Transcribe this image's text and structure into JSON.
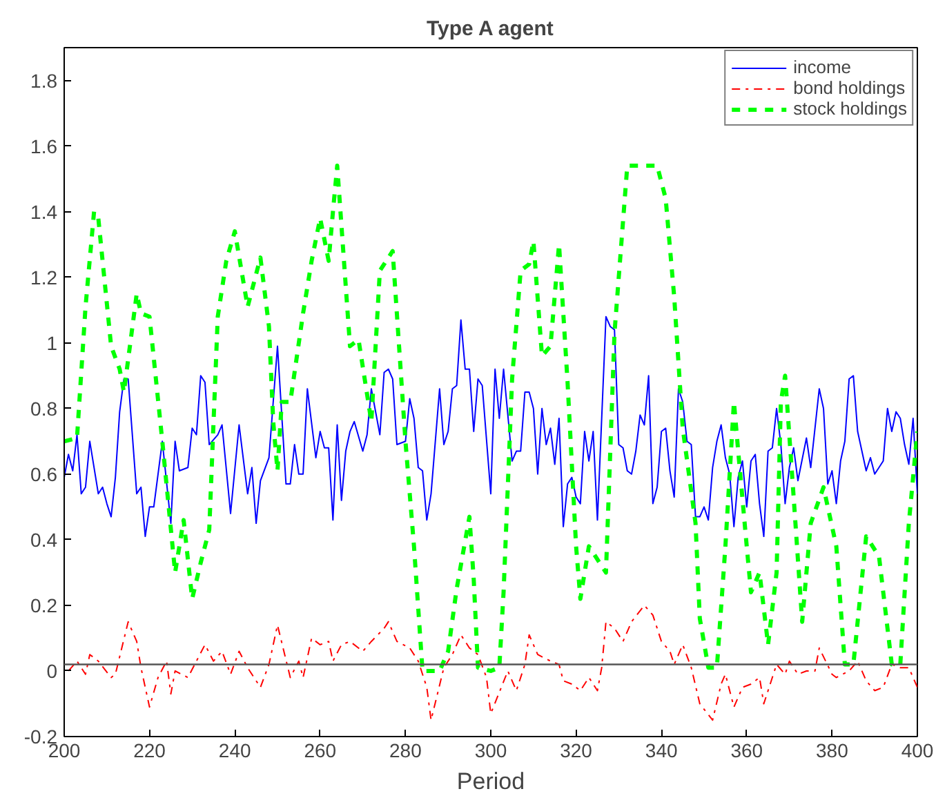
{
  "chart_data": {
    "type": "line",
    "title": "Type A agent",
    "xlabel": "Period",
    "xlim": [
      200,
      400
    ],
    "xticks": [
      200,
      220,
      240,
      260,
      280,
      300,
      320,
      340,
      360,
      380,
      400
    ],
    "ylim": [
      -0.2,
      1.9
    ],
    "yticks": [
      -0.2,
      0,
      0.2,
      0.4,
      0.6,
      0.8,
      1,
      1.2,
      1.4,
      1.6,
      1.8
    ],
    "grid": false,
    "legend": "top right",
    "marker": "none",
    "ref_lines": [
      {
        "axis": "y",
        "value": 0.02,
        "color": "#555555"
      }
    ],
    "series": [
      {
        "name": "income",
        "color": "#0000ff",
        "line_style": "solid",
        "x": [
          200,
          201,
          202,
          203,
          204,
          205,
          206,
          208,
          209,
          210,
          211,
          212,
          213,
          214,
          215,
          217,
          218,
          219,
          220,
          221,
          223,
          225,
          226,
          227,
          229,
          230,
          231,
          232,
          233,
          234,
          236,
          237,
          239,
          241,
          243,
          244,
          245,
          246,
          248,
          250,
          252,
          253,
          254,
          255,
          256,
          257,
          259,
          260,
          261,
          262,
          263,
          264,
          265,
          266,
          267,
          268,
          270,
          271,
          272,
          274,
          275,
          276,
          277,
          278,
          280,
          281,
          282,
          283,
          284,
          285,
          286,
          288,
          289,
          290,
          291,
          292,
          293,
          294,
          295,
          296,
          297,
          298,
          300,
          301,
          302,
          303,
          305,
          306,
          307,
          308,
          309,
          310,
          311,
          312,
          313,
          314,
          315,
          316,
          317,
          318,
          319,
          320,
          321,
          322,
          323,
          324,
          325,
          327,
          328,
          329,
          330,
          331,
          332,
          333,
          334,
          335,
          336,
          337,
          338,
          339,
          340,
          341,
          342,
          343,
          344,
          345,
          346,
          347,
          348,
          349,
          350,
          351,
          352,
          353,
          354,
          355,
          356,
          357,
          358,
          359,
          360,
          361,
          362,
          363,
          364,
          365,
          366,
          367,
          368,
          369,
          370,
          371,
          372,
          374,
          375,
          377,
          378,
          379,
          380,
          381,
          382,
          383,
          384,
          385,
          386,
          388,
          389,
          390,
          392,
          393,
          394,
          395,
          396,
          397,
          398,
          399,
          400
        ],
        "values": [
          0.59,
          0.66,
          0.61,
          0.72,
          0.54,
          0.56,
          0.7,
          0.54,
          0.56,
          0.51,
          0.47,
          0.59,
          0.79,
          0.89,
          0.89,
          0.54,
          0.56,
          0.41,
          0.5,
          0.5,
          0.7,
          0.45,
          0.7,
          0.61,
          0.62,
          0.74,
          0.72,
          0.9,
          0.88,
          0.69,
          0.72,
          0.75,
          0.48,
          0.75,
          0.54,
          0.62,
          0.45,
          0.58,
          0.65,
          0.99,
          0.57,
          0.57,
          0.69,
          0.6,
          0.6,
          0.86,
          0.65,
          0.73,
          0.68,
          0.68,
          0.46,
          0.75,
          0.52,
          0.67,
          0.73,
          0.76,
          0.67,
          0.72,
          0.86,
          0.72,
          0.91,
          0.92,
          0.89,
          0.69,
          0.7,
          0.83,
          0.77,
          0.62,
          0.61,
          0.46,
          0.54,
          0.86,
          0.69,
          0.73,
          0.86,
          0.87,
          1.07,
          0.92,
          0.92,
          0.73,
          0.89,
          0.87,
          0.54,
          0.92,
          0.77,
          0.92,
          0.64,
          0.67,
          0.67,
          0.85,
          0.85,
          0.8,
          0.6,
          0.8,
          0.69,
          0.74,
          0.63,
          0.77,
          0.44,
          0.57,
          0.59,
          0.53,
          0.51,
          0.73,
          0.64,
          0.73,
          0.46,
          1.08,
          1.05,
          1.04,
          0.69,
          0.68,
          0.61,
          0.6,
          0.67,
          0.78,
          0.75,
          0.9,
          0.51,
          0.56,
          0.73,
          0.74,
          0.61,
          0.53,
          0.86,
          0.82,
          0.7,
          0.69,
          0.47,
          0.47,
          0.5,
          0.46,
          0.62,
          0.7,
          0.75,
          0.65,
          0.6,
          0.44,
          0.59,
          0.64,
          0.5,
          0.64,
          0.66,
          0.51,
          0.41,
          0.67,
          0.68,
          0.8,
          0.69,
          0.51,
          0.62,
          0.68,
          0.58,
          0.71,
          0.62,
          0.86,
          0.8,
          0.57,
          0.61,
          0.51,
          0.64,
          0.7,
          0.89,
          0.9,
          0.73,
          0.61,
          0.65,
          0.6,
          0.64,
          0.8,
          0.73,
          0.79,
          0.77,
          0.69,
          0.63,
          0.77,
          0.54
        ]
      },
      {
        "name": "bond holdings",
        "color": "#ff0000",
        "line_style": "dashdot",
        "x": [
          201,
          203,
          205,
          206,
          208,
          211,
          212,
          215,
          217,
          218,
          220,
          222,
          224,
          225,
          226,
          229,
          231,
          233,
          235,
          237,
          239,
          241,
          243,
          246,
          248,
          250,
          253,
          255,
          256,
          258,
          260,
          262,
          263,
          265,
          267,
          270,
          272,
          275,
          276,
          278,
          281,
          283,
          285,
          286,
          289,
          291,
          293,
          295,
          297,
          299,
          300,
          304,
          306,
          308,
          309,
          311,
          314,
          316,
          317,
          319,
          321,
          323,
          325,
          326,
          327,
          329,
          331,
          333,
          336,
          338,
          340,
          342,
          343,
          345,
          347,
          349,
          352,
          354,
          355,
          357,
          359,
          361,
          363,
          364,
          367,
          369,
          370,
          372,
          374,
          376,
          377,
          380,
          381,
          384,
          386,
          388,
          390,
          392,
          394,
          396,
          398,
          400
        ],
        "values": [
          0.0,
          0.03,
          -0.01,
          0.05,
          0.03,
          -0.02,
          -0.01,
          0.15,
          0.09,
          0.01,
          -0.11,
          -0.02,
          0.03,
          -0.07,
          0.0,
          -0.02,
          0.03,
          0.08,
          0.03,
          0.06,
          -0.01,
          0.06,
          0.01,
          -0.05,
          0.02,
          0.14,
          -0.02,
          0.03,
          -0.02,
          0.1,
          0.08,
          0.09,
          0.03,
          0.08,
          0.09,
          0.06,
          0.09,
          0.13,
          0.15,
          0.09,
          0.07,
          0.03,
          -0.05,
          -0.15,
          0.01,
          0.05,
          0.11,
          0.07,
          0.05,
          -0.02,
          -0.13,
          0.0,
          -0.06,
          0.02,
          0.11,
          0.05,
          0.03,
          0.02,
          -0.03,
          -0.04,
          -0.06,
          -0.02,
          -0.06,
          0.01,
          0.15,
          0.13,
          0.09,
          0.15,
          0.2,
          0.17,
          0.09,
          0.06,
          0.02,
          0.08,
          0.01,
          -0.1,
          -0.15,
          -0.04,
          -0.01,
          -0.11,
          -0.05,
          -0.04,
          -0.02,
          -0.1,
          0.02,
          -0.01,
          0.03,
          -0.01,
          0.0,
          0.0,
          0.07,
          -0.01,
          -0.02,
          0.0,
          0.03,
          -0.03,
          -0.06,
          -0.05,
          0.02,
          0.01,
          0.01,
          -0.05
        ]
      },
      {
        "name": "stock holdings",
        "color": "#00ff00",
        "line_style": "dashed",
        "x": [
          200,
          203,
          205,
          207,
          208,
          211,
          213,
          214,
          217,
          218,
          220,
          223,
          226,
          228,
          230,
          232,
          234,
          236,
          238,
          240,
          243,
          246,
          248,
          249,
          250,
          251,
          253,
          256,
          258,
          260,
          262,
          263,
          264,
          267,
          269,
          272,
          274,
          277,
          280,
          282,
          284,
          288,
          290,
          292,
          295,
          296,
          297,
          300,
          302,
          303,
          305,
          307,
          309,
          310,
          312,
          314,
          316,
          318,
          320,
          321,
          323,
          325,
          327,
          329,
          332,
          339,
          341,
          343,
          345,
          348,
          349,
          351,
          353,
          355,
          357,
          358,
          360,
          361,
          363,
          365,
          367,
          368,
          369,
          371,
          373,
          375,
          378,
          381,
          383,
          385,
          388,
          391,
          394,
          396,
          398,
          400
        ],
        "values": [
          0.7,
          0.71,
          1.11,
          1.4,
          1.38,
          0.99,
          0.92,
          0.85,
          1.15,
          1.09,
          1.08,
          0.7,
          0.3,
          0.46,
          0.22,
          0.33,
          0.43,
          1.08,
          1.25,
          1.34,
          1.11,
          1.26,
          1.05,
          0.76,
          0.61,
          0.82,
          0.82,
          1.09,
          1.25,
          1.38,
          1.25,
          1.4,
          1.54,
          0.99,
          1.01,
          0.76,
          1.22,
          1.28,
          0.7,
          0.38,
          0.0,
          0.0,
          0.06,
          0.25,
          0.47,
          0.28,
          0.01,
          0.0,
          0.01,
          0.24,
          0.89,
          1.22,
          1.24,
          1.31,
          0.96,
          0.99,
          1.3,
          0.88,
          0.38,
          0.22,
          0.38,
          0.34,
          0.3,
          1.03,
          1.54,
          1.54,
          1.44,
          1.14,
          0.74,
          0.45,
          0.16,
          0.01,
          0.01,
          0.38,
          0.82,
          0.67,
          0.38,
          0.24,
          0.3,
          0.08,
          0.3,
          0.82,
          0.9,
          0.53,
          0.15,
          0.45,
          0.56,
          0.38,
          0.02,
          0.02,
          0.41,
          0.35,
          0.02,
          0.02,
          0.45,
          0.73
        ]
      }
    ]
  }
}
